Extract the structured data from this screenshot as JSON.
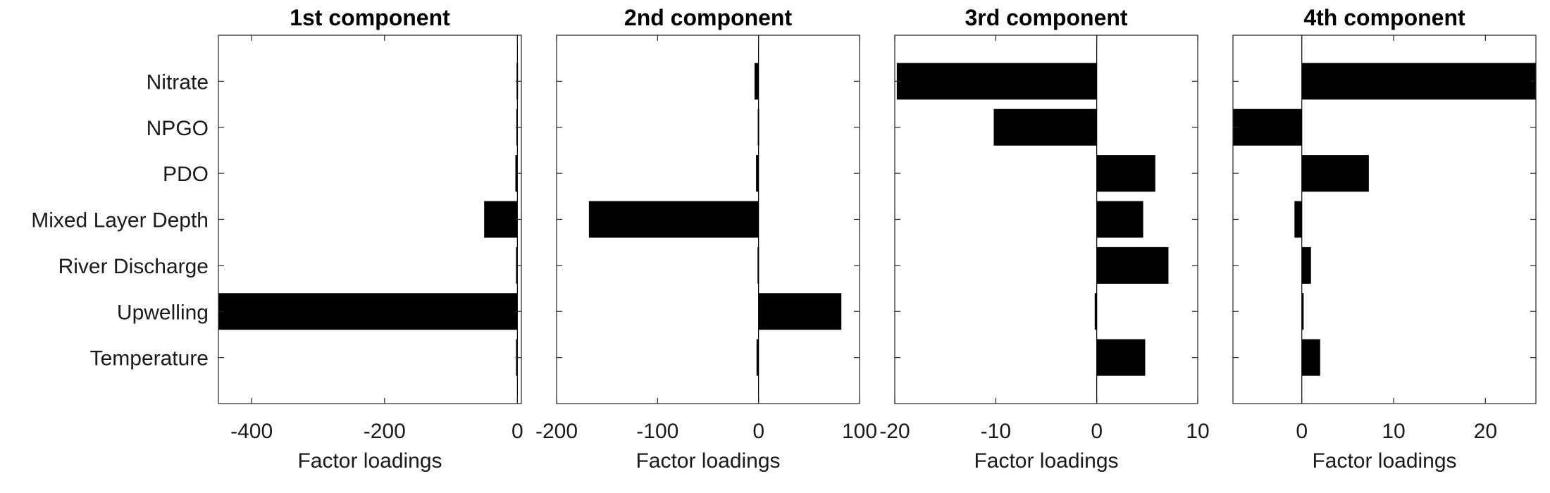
{
  "chart_data": [
    {
      "type": "bar",
      "orientation": "horizontal",
      "title": "1st component",
      "xlabel": "Factor loadings",
      "categories": [
        "Nitrate",
        "NPGO",
        "PDO",
        "Mixed Layer Depth",
        "River Discharge",
        "Upwelling",
        "Temperature"
      ],
      "values": [
        -1.2,
        -1.5,
        -3,
        -50,
        -2,
        -450,
        -2
      ],
      "xlim": [
        -450,
        6
      ],
      "xticks": [
        -400,
        -200,
        0
      ],
      "xtick_labels": [
        "-400",
        "-200",
        "0"
      ],
      "bar_color": "#000000"
    },
    {
      "type": "bar",
      "orientation": "horizontal",
      "title": "2nd component",
      "xlabel": "Factor loadings",
      "categories": [
        "Nitrate",
        "NPGO",
        "PDO",
        "Mixed Layer Depth",
        "River Discharge",
        "Upwelling",
        "Temperature"
      ],
      "values": [
        -4,
        -0.8,
        -2.5,
        -168,
        -1,
        82,
        -2
      ],
      "xlim": [
        -200,
        100
      ],
      "xticks": [
        -200,
        -100,
        0,
        100
      ],
      "xtick_labels": [
        "-200",
        "-100",
        "0",
        "100"
      ],
      "bar_color": "#000000"
    },
    {
      "type": "bar",
      "orientation": "horizontal",
      "title": "3rd component",
      "xlabel": "Factor loadings",
      "categories": [
        "Nitrate",
        "NPGO",
        "PDO",
        "Mixed Layer Depth",
        "River Discharge",
        "Upwelling",
        "Temperature"
      ],
      "values": [
        -19.8,
        -10.2,
        5.8,
        4.6,
        7.1,
        -0.2,
        4.8
      ],
      "xlim": [
        -20,
        10
      ],
      "xticks": [
        -20,
        -10,
        0,
        10
      ],
      "xtick_labels": [
        "-20",
        "-10",
        "0",
        "10"
      ],
      "bar_color": "#000000"
    },
    {
      "type": "bar",
      "orientation": "horizontal",
      "title": "4th component",
      "xlabel": "Factor loadings",
      "categories": [
        "Nitrate",
        "NPGO",
        "PDO",
        "Mixed Layer Depth",
        "River Discharge",
        "Upwelling",
        "Temperature"
      ],
      "values": [
        25.5,
        -7.5,
        7.3,
        -0.8,
        1.0,
        0.2,
        2.0
      ],
      "xlim": [
        -7.5,
        25.5
      ],
      "xticks": [
        0,
        10,
        20
      ],
      "xtick_labels": [
        "0",
        "10",
        "20"
      ],
      "bar_color": "#000000"
    }
  ]
}
